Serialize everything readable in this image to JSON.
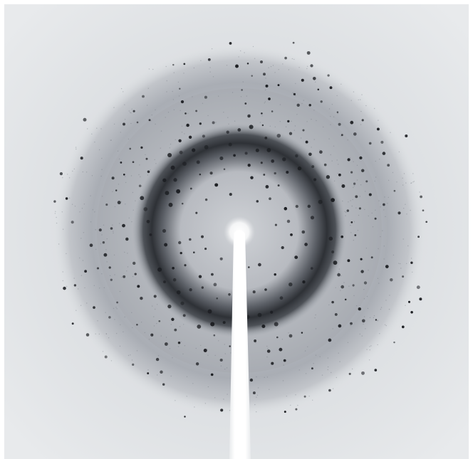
{
  "image": {
    "subject": "x-ray-diffraction-pattern",
    "colors": {
      "background": "#e4e6e9",
      "halo": "#c9ccd1",
      "ring_outer": "#7f848b",
      "ring_core": "#2b2e33",
      "spot": "#1c1e22",
      "beam": "#ffffff"
    }
  }
}
